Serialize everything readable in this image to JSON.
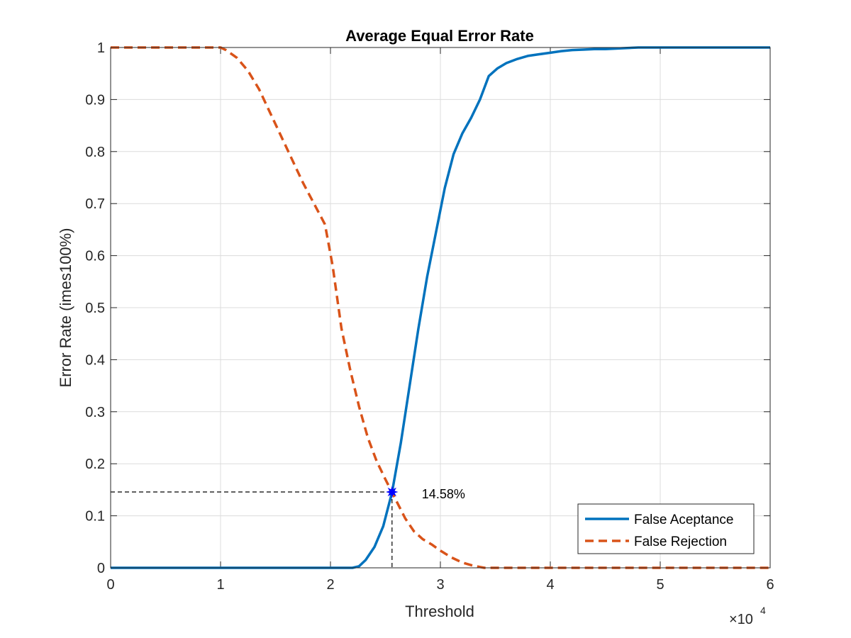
{
  "chart_data": {
    "type": "line",
    "title": "Average Equal Error Rate",
    "xlabel": "Threshold",
    "ylabel": "Error Rate (imes100%)",
    "xlim": [
      0,
      60000
    ],
    "ylim": [
      0,
      1
    ],
    "x_multiplier": {
      "base": "×10",
      "exponent": "4"
    },
    "xticks": [
      0,
      10000,
      20000,
      30000,
      40000,
      50000,
      60000
    ],
    "xtick_labels": [
      "0",
      "1",
      "2",
      "3",
      "4",
      "5",
      "6"
    ],
    "yticks": [
      0,
      0.1,
      0.2,
      0.3,
      0.4,
      0.5,
      0.6,
      0.7,
      0.8,
      0.9,
      1
    ],
    "ytick_labels": [
      "0",
      "0.1",
      "0.2",
      "0.3",
      "0.4",
      "0.5",
      "0.6",
      "0.7",
      "0.8",
      "0.9",
      "1"
    ],
    "grid": true,
    "legend_position": "bottom-right",
    "series": [
      {
        "name": "False Aceptance",
        "color": "#0072BD",
        "style": "solid",
        "x": [
          0,
          22000,
          22600,
          23200,
          24000,
          24800,
          25600,
          26400,
          27200,
          28000,
          28800,
          29600,
          30400,
          31200,
          32000,
          32800,
          33600,
          34400,
          35200,
          36000,
          37000,
          38000,
          39000,
          40000,
          41000,
          42000,
          43000,
          44000,
          45000,
          46000,
          47000,
          48000,
          50000,
          55000,
          60000
        ],
        "y": [
          0,
          0,
          0.003,
          0.015,
          0.04,
          0.08,
          0.145,
          0.24,
          0.35,
          0.46,
          0.56,
          0.645,
          0.73,
          0.795,
          0.835,
          0.865,
          0.9,
          0.945,
          0.96,
          0.97,
          0.978,
          0.984,
          0.987,
          0.99,
          0.993,
          0.995,
          0.996,
          0.997,
          0.997,
          0.998,
          0.999,
          1,
          1,
          1,
          1
        ]
      },
      {
        "name": "False Rejection",
        "color": "#D95319",
        "style": "dashed",
        "x": [
          0,
          10000,
          10500,
          11500,
          12500,
          13500,
          14500,
          15500,
          16500,
          17500,
          18500,
          19500,
          20200,
          21000,
          21800,
          22600,
          23400,
          24200,
          25000,
          25600,
          26200,
          26800,
          27600,
          28400,
          29200,
          30000,
          31000,
          32000,
          33000,
          34000,
          36000,
          40000,
          45000,
          50000,
          55000,
          60000
        ],
        "y": [
          1,
          1,
          0.995,
          0.98,
          0.955,
          0.92,
          0.875,
          0.83,
          0.785,
          0.74,
          0.7,
          0.66,
          0.58,
          0.46,
          0.38,
          0.31,
          0.25,
          0.205,
          0.17,
          0.145,
          0.12,
          0.095,
          0.07,
          0.055,
          0.045,
          0.033,
          0.02,
          0.01,
          0.004,
          0,
          0,
          0,
          0,
          0,
          0,
          0
        ]
      }
    ],
    "eer_point": {
      "x": 25600,
      "y": 0.1458,
      "label": "14.58%",
      "color": "#0000FF"
    }
  }
}
